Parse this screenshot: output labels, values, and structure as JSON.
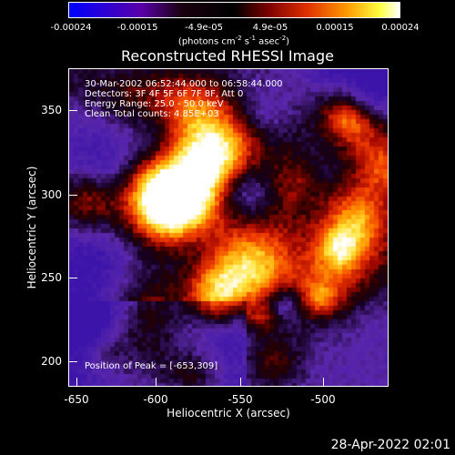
{
  "colorbar": {
    "ticks": [
      "-0.00024",
      "-0.00015",
      "-4.9e-05",
      "4.9e-05",
      "0.00015",
      "0.00024"
    ],
    "unit_prefix": "(photons cm",
    "unit_exp1": "-2",
    "unit_mid1": " s",
    "unit_exp2": "-1",
    "unit_mid2": " asec",
    "unit_exp3": "-2",
    "unit_suffix": ")",
    "colors": [
      "#0000ff",
      "#4b0082",
      "#000000",
      "#8b0000",
      "#ff4500",
      "#ffa500",
      "#ffff00",
      "#ffffff"
    ]
  },
  "title": "Reconstructed RHESSI Image",
  "info": {
    "line1": "30-Mar-2002 06:52:44.000 to 06:58:44.000",
    "line2": "Detectors: 3F 4F 5F 6F 7F 8F, Att 0",
    "line3": "Energy Range: 25.0 - 50.0 keV",
    "line4": "Clean     Total counts: 4.85E+03"
  },
  "peak": "Position of Peak = [-653,309]",
  "axes": {
    "x_ticks": [
      "-650",
      "-600",
      "-550",
      "-500"
    ],
    "y_ticks": [
      "350",
      "300",
      "250",
      "200"
    ],
    "xlabel": "Heliocentric X (arcsec)",
    "ylabel": "Heliocentric Y (arcsec)"
  },
  "timestamp": "28-Apr-2022 02:01"
}
